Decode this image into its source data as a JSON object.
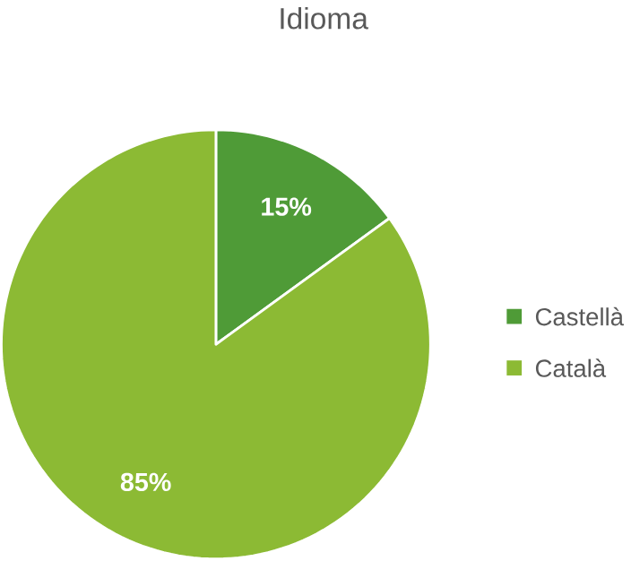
{
  "chart_data": {
    "type": "pie",
    "title": "Idioma",
    "categories": [
      "Castellà",
      "Català"
    ],
    "values": [
      15,
      85
    ],
    "colors": [
      "#4f9b37",
      "#8cba34"
    ],
    "value_labels": [
      "15%",
      "85%"
    ],
    "legend": "right"
  }
}
